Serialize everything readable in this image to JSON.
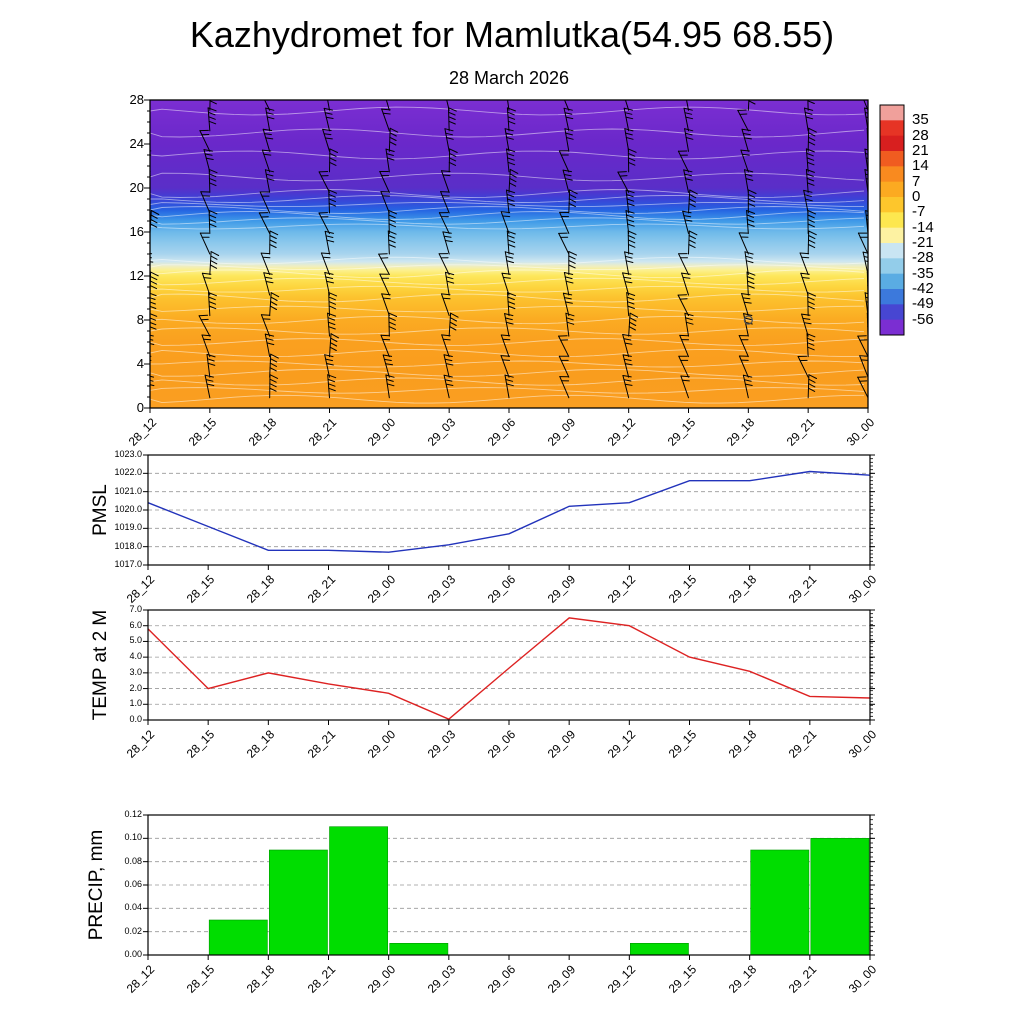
{
  "page": {
    "title": "Kazhydromet for Mamlutka(54.95 68.55)",
    "subtitle": "28 March 2026"
  },
  "time_labels": [
    "28_12",
    "28_15",
    "28_18",
    "28_21",
    "29_00",
    "29_03",
    "29_06",
    "29_09",
    "29_12",
    "29_15",
    "29_18",
    "29_21",
    "30_00"
  ],
  "chart_data": [
    {
      "id": "cross_section",
      "type": "heatmap",
      "description": "Time-height cross-section of temperature (deg C) with wind barbs and white contour lines",
      "x_categories": [
        "28_12",
        "28_15",
        "28_18",
        "28_21",
        "29_00",
        "29_03",
        "29_06",
        "29_09",
        "29_12",
        "29_15",
        "29_18",
        "29_21",
        "30_00"
      ],
      "ylim": [
        0,
        28
      ],
      "yticks": [
        28,
        24,
        20,
        16,
        12,
        8,
        4,
        0
      ],
      "colorbar": {
        "boundary_labels": [
          "35",
          "28",
          "21",
          "14",
          "7",
          "0",
          "-7",
          "-14",
          "-21",
          "-28",
          "-35",
          "-42",
          "-49",
          "-56"
        ],
        "segment_colors": [
          "#f0a09b",
          "#e63425",
          "#d81f1f",
          "#f05c20",
          "#f98a1f",
          "#fcaa21",
          "#fdc62c",
          "#fde74f",
          "#fdf2a2",
          "#c9e5f3",
          "#93cdea",
          "#5aace3",
          "#3c79dc",
          "#4746d2",
          "#7b2ed2"
        ]
      },
      "gradient_stops": [
        {
          "pos": 0.0,
          "color": "#7b2ed2"
        },
        {
          "pos": 0.14,
          "color": "#6a28ca"
        },
        {
          "pos": 0.285,
          "color": "#5a2ec8"
        },
        {
          "pos": 0.32,
          "color": "#3c41d6"
        },
        {
          "pos": 0.357,
          "color": "#2563e2"
        },
        {
          "pos": 0.393,
          "color": "#3f9ae8"
        },
        {
          "pos": 0.428,
          "color": "#6db9ea"
        },
        {
          "pos": 0.464,
          "color": "#8cc8ec"
        },
        {
          "pos": 0.5,
          "color": "#a8d4ee"
        },
        {
          "pos": 0.525,
          "color": "#cfe7f0"
        },
        {
          "pos": 0.54,
          "color": "#f0eec0"
        },
        {
          "pos": 0.553,
          "color": "#fcf08e"
        },
        {
          "pos": 0.571,
          "color": "#fde75c"
        },
        {
          "pos": 0.607,
          "color": "#fdd53e"
        },
        {
          "pos": 0.643,
          "color": "#fcc22e"
        },
        {
          "pos": 0.714,
          "color": "#fbab22"
        },
        {
          "pos": 0.786,
          "color": "#faa01f"
        },
        {
          "pos": 0.893,
          "color": "#f99d1e"
        },
        {
          "pos": 1.0,
          "color": "#fa9f22"
        }
      ],
      "contour_heights": [
        0.8,
        1.6,
        2.4,
        3.2,
        4,
        5,
        6,
        7,
        8,
        9,
        10,
        10.8,
        11.5,
        12.2,
        12.8,
        13.4,
        16.5,
        17,
        17.5,
        18,
        18.5,
        19,
        19.5,
        21,
        23,
        25,
        27
      ],
      "wind_barb_grid": {
        "columns": 13,
        "rows": 15
      },
      "marker": {
        "time_index": 10,
        "height": 8
      }
    },
    {
      "id": "pmsl",
      "type": "line",
      "ylabel": "PMSL",
      "line_color": "#2233bb",
      "ylim": [
        1017,
        1023
      ],
      "ytick_labels": [
        "1023.0",
        "1022.0",
        "1021.0",
        "1020.0",
        "1019.0",
        "1018.0",
        "1017.0"
      ],
      "x_categories": [
        "28_12",
        "28_15",
        "28_18",
        "28_21",
        "29_00",
        "29_03",
        "29_06",
        "29_09",
        "29_12",
        "29_15",
        "29_18",
        "29_21",
        "30_00"
      ],
      "values": [
        1020.4,
        1019.1,
        1017.8,
        1017.8,
        1017.7,
        1018.1,
        1018.7,
        1020.2,
        1020.4,
        1021.6,
        1021.6,
        1022.1,
        1021.9
      ]
    },
    {
      "id": "temp2m",
      "type": "line",
      "ylabel": "TEMP at 2 M",
      "line_color": "#dd2222",
      "ylim": [
        0,
        7
      ],
      "ytick_labels": [
        "7.0",
        "6.0",
        "5.0",
        "4.0",
        "3.0",
        "2.0",
        "1.0",
        "0.0"
      ],
      "x_categories": [
        "28_12",
        "28_15",
        "28_18",
        "28_21",
        "29_00",
        "29_03",
        "29_06",
        "29_09",
        "29_12",
        "29_15",
        "29_18",
        "29_21",
        "30_00"
      ],
      "values": [
        5.8,
        2.0,
        3.0,
        2.3,
        1.7,
        0.05,
        3.3,
        6.5,
        6.0,
        4.0,
        3.1,
        1.5,
        1.4
      ]
    },
    {
      "id": "precip",
      "type": "bar",
      "ylabel": "PRECIP, mm",
      "bar_color": "#00dd00",
      "ylim": [
        0,
        0.12
      ],
      "ytick_labels": [
        "0.12",
        "0.10",
        "0.08",
        "0.06",
        "0.04",
        "0.02",
        "0.00"
      ],
      "x_categories": [
        "28_12",
        "28_15",
        "28_18",
        "28_21",
        "29_00",
        "29_03",
        "29_06",
        "29_09",
        "29_12",
        "29_15",
        "29_18",
        "29_21",
        "30_00"
      ],
      "values": [
        0,
        0,
        0.03,
        0.09,
        0.11,
        0.01,
        0,
        0,
        0,
        0.01,
        0,
        0.09,
        0.1
      ]
    }
  ]
}
